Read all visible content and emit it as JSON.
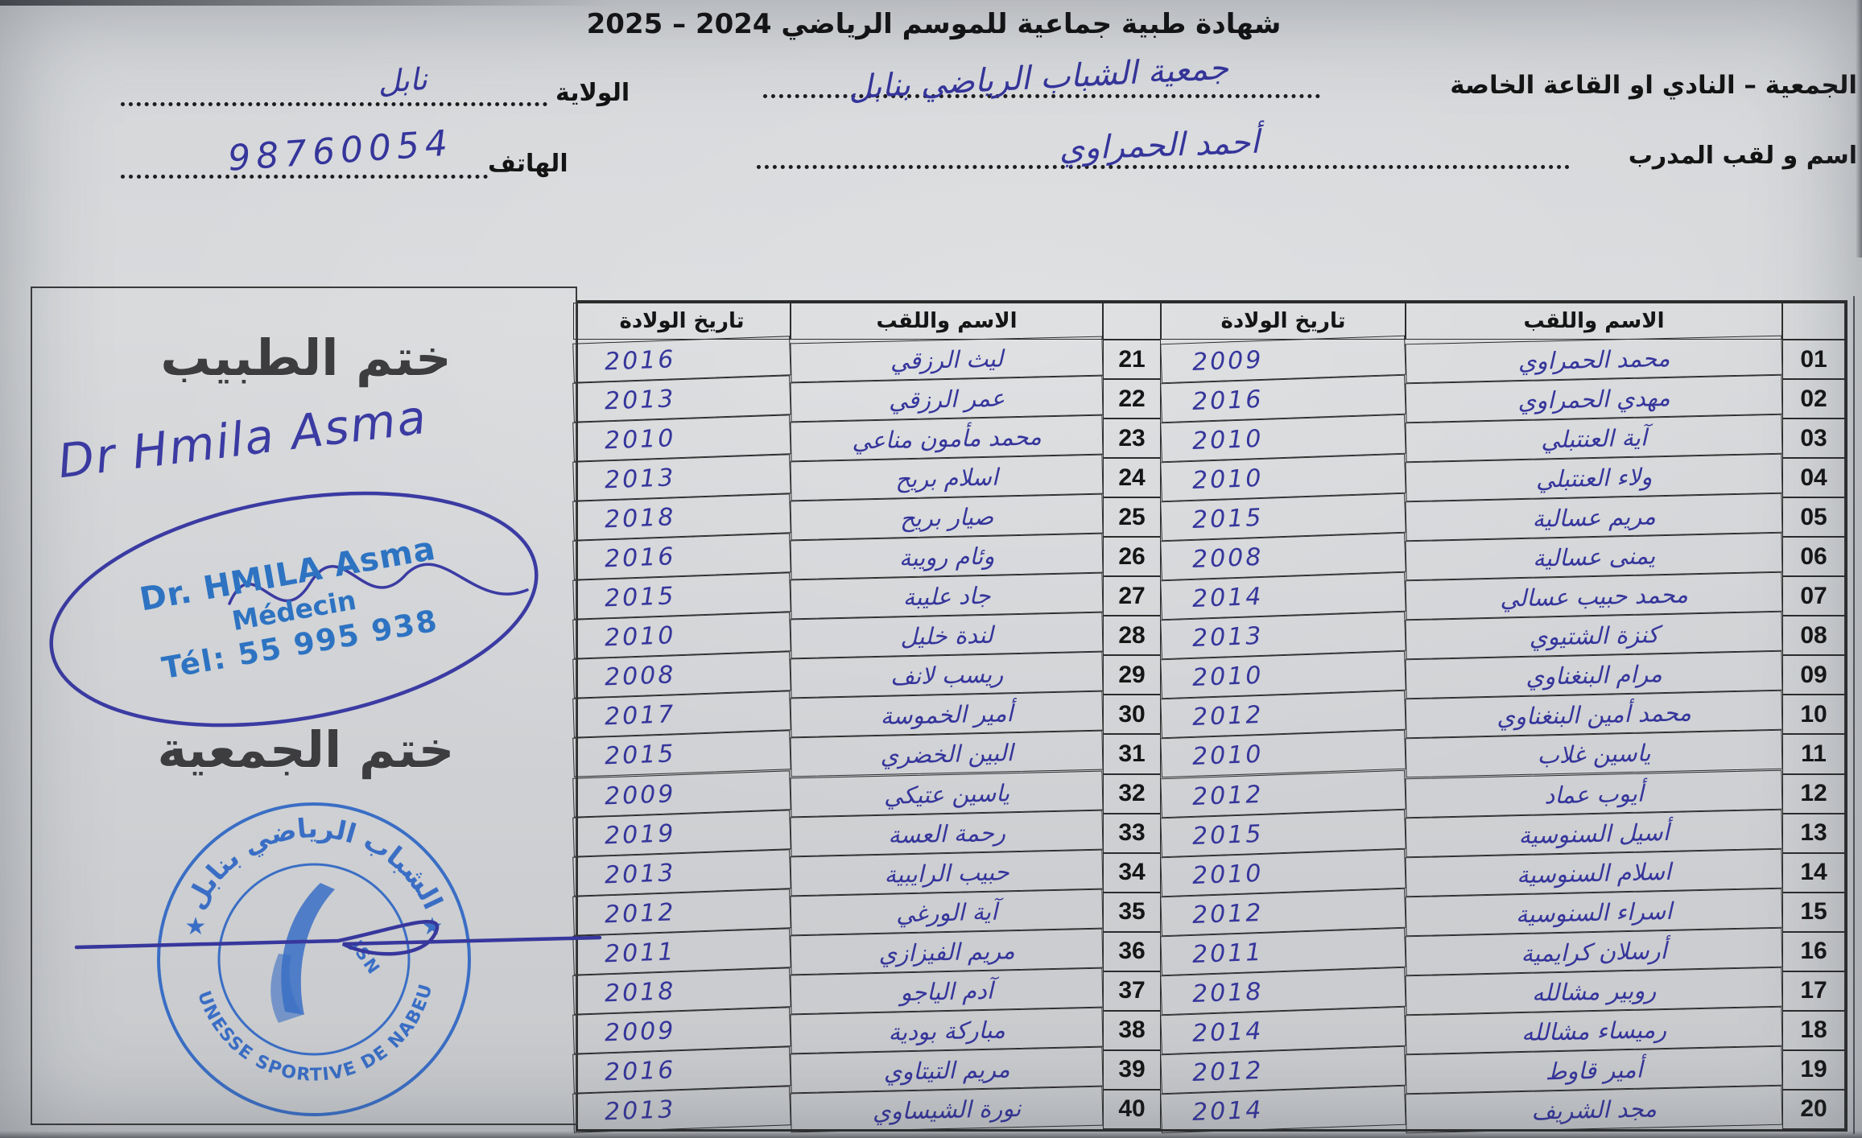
{
  "document": {
    "title": "شهادة طبية جماعية للموسم الرياضي 2024 – 2025",
    "fields": {
      "association_label": "الجمعية – النادي او القاعة الخاصة",
      "association_value": "جمعية الشباب الرياضي بنابل",
      "wilaya_label": "الولاية",
      "wilaya_value": "نابل",
      "coach_label": "اسم و لقب المدرب",
      "coach_value": "أحمد الحمراوي",
      "phone_label": "الهاتف",
      "phone_value": "98760054"
    }
  },
  "table": {
    "name_header": "الاسم واللقب",
    "dob_header": "تاريخ الولادة",
    "right_rows": [
      {
        "no": "01",
        "name": "محمد الحمراوي",
        "dob": "2009"
      },
      {
        "no": "02",
        "name": "مهدي الحمراوي",
        "dob": "2016"
      },
      {
        "no": "03",
        "name": "آية العنتبلي",
        "dob": "2010"
      },
      {
        "no": "04",
        "name": "ولاء العنتبلي",
        "dob": "2010"
      },
      {
        "no": "05",
        "name": "مريم عسالية",
        "dob": "2015"
      },
      {
        "no": "06",
        "name": "يمنى عسالية",
        "dob": "2008"
      },
      {
        "no": "07",
        "name": "محمد حبيب عسالي",
        "dob": "2014"
      },
      {
        "no": "08",
        "name": "كنزة الشتيوي",
        "dob": "2013"
      },
      {
        "no": "09",
        "name": "مرام البنغناوي",
        "dob": "2010"
      },
      {
        "no": "10",
        "name": "محمد أمين البنغناوي",
        "dob": "2012"
      },
      {
        "no": "11",
        "name": "ياسين غلاب",
        "dob": "2010"
      },
      {
        "no": "12",
        "name": "أيوب عماد",
        "dob": "2012"
      },
      {
        "no": "13",
        "name": "أسيل السنوسية",
        "dob": "2015"
      },
      {
        "no": "14",
        "name": "اسلام السنوسية",
        "dob": "2010"
      },
      {
        "no": "15",
        "name": "اسراء السنوسية",
        "dob": "2012"
      },
      {
        "no": "16",
        "name": "أرسلان كرايمية",
        "dob": "2011"
      },
      {
        "no": "17",
        "name": "روبير مشالله",
        "dob": "2018"
      },
      {
        "no": "18",
        "name": "رميساء مشالله",
        "dob": "2014"
      },
      {
        "no": "19",
        "name": "أمير قاوط",
        "dob": "2012"
      },
      {
        "no": "20",
        "name": "مجد الشريف",
        "dob": "2014"
      }
    ],
    "left_rows": [
      {
        "no": "21",
        "name": "ليث الرزقي",
        "dob": "2016"
      },
      {
        "no": "22",
        "name": "عمر الرزقي",
        "dob": "2013"
      },
      {
        "no": "23",
        "name": "محمد مأمون مناعي",
        "dob": "2010"
      },
      {
        "no": "24",
        "name": "اسلام بريح",
        "dob": "2013"
      },
      {
        "no": "25",
        "name": "صيار بريح",
        "dob": "2018"
      },
      {
        "no": "26",
        "name": "وئام رويبة",
        "dob": "2016"
      },
      {
        "no": "27",
        "name": "جاد عليبة",
        "dob": "2015"
      },
      {
        "no": "28",
        "name": "لندة خليل",
        "dob": "2010"
      },
      {
        "no": "29",
        "name": "ريسب لانف",
        "dob": "2008"
      },
      {
        "no": "30",
        "name": "أمير الخموسة",
        "dob": "2017"
      },
      {
        "no": "31",
        "name": "البين الخضري",
        "dob": "2015"
      },
      {
        "no": "32",
        "name": "ياسين عتيكي",
        "dob": "2009"
      },
      {
        "no": "33",
        "name": "رحمة العسة",
        "dob": "2019"
      },
      {
        "no": "34",
        "name": "حبيب الرايبية",
        "dob": "2013"
      },
      {
        "no": "35",
        "name": "آية الورغي",
        "dob": "2012"
      },
      {
        "no": "36",
        "name": "مريم الفيزازي",
        "dob": "2011"
      },
      {
        "no": "37",
        "name": "آدم الياجو",
        "dob": "2018"
      },
      {
        "no": "38",
        "name": "مباركة بودية",
        "dob": "2009"
      },
      {
        "no": "39",
        "name": "مريم التيتاوي",
        "dob": "2016"
      },
      {
        "no": "40",
        "name": "نورة الشيساوي",
        "dob": "2013"
      }
    ]
  },
  "stamps": {
    "doctor_section_label": "ختم الطبيب",
    "doctor_signature": "Dr Hmila Asma",
    "doctor_stamp": {
      "line1": "Dr. HMILA Asma",
      "line2": "Médecin",
      "line3": "Tél: 55 995 938"
    },
    "association_section_label": "ختم الجمعية",
    "round_stamp": {
      "arabic_arc": "الشباب الرياضي بنابل",
      "latin_arc": "JEUNESSE SPORTIVE DE NABEUL",
      "monogram": "JSN"
    }
  },
  "colors": {
    "handwriting_ink": "#35359b",
    "doctor_stamp_blue": "#2d73c2",
    "round_stamp_blue": "#3a6ec5",
    "paper": "#d3d5d8"
  }
}
